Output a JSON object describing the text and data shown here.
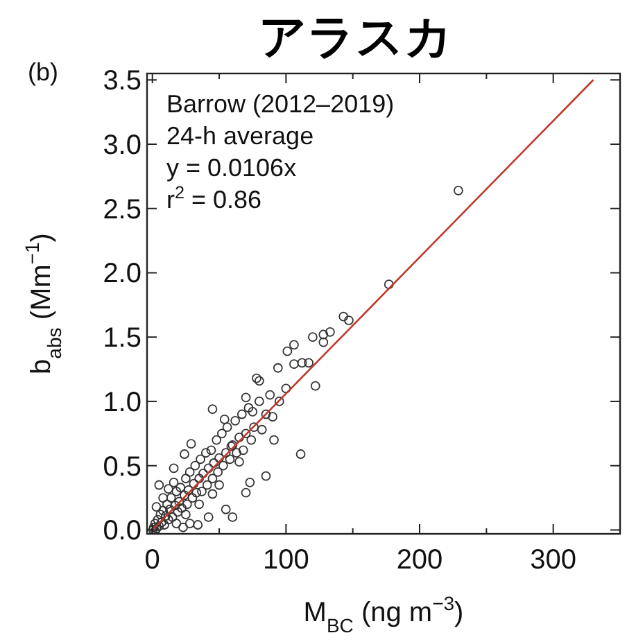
{
  "chart_data": {
    "type": "scatter",
    "title": "アラスカ",
    "xlabel": "M$_{BC}$ (ng m$^{−3}$)",
    "ylabel": "b$_{abs}$ (Mm$^{−1}$)",
    "annotations": [
      "(b)",
      "Barrow (2012–2019)",
      "24-h average",
      "y = 0.0106x",
      "r$^{2}$ = 0.86"
    ],
    "xlim": [
      -4,
      350
    ],
    "ylim": [
      -0.03,
      3.55
    ],
    "xticks": [
      0,
      {
        "value": 50,
        "label": null
      },
      100,
      {
        "value": 150,
        "label": null
      },
      200,
      {
        "value": 250,
        "label": null
      },
      300
    ],
    "yticks": [
      {
        "value": 0,
        "label": "0.0"
      },
      {
        "value": 0.5,
        "label": "0.5"
      },
      {
        "value": 1,
        "label": "1.0"
      },
      {
        "value": 1.5,
        "label": "1.5"
      },
      {
        "value": 2,
        "label": "2.0"
      },
      {
        "value": 2.5,
        "label": "2.5"
      },
      {
        "value": 3,
        "label": "3.0"
      },
      {
        "value": 3.5,
        "label": "3.5"
      }
    ],
    "grid": false,
    "series": [
      {
        "color": "#333333",
        "marker": "circle",
        "x": [
          229,
          177,
          143,
          147,
          120,
          128,
          133,
          128,
          106,
          106,
          112,
          117,
          122,
          91,
          111,
          78,
          60,
          85,
          70,
          55,
          16,
          5,
          34,
          23,
          45,
          54,
          94,
          101,
          70,
          80,
          75,
          29,
          24,
          16,
          59,
          65,
          73,
          42,
          28,
          1,
          2,
          3,
          4,
          5,
          6,
          7,
          8,
          9,
          10,
          11,
          12,
          13,
          14,
          15,
          17,
          18,
          19,
          20,
          21,
          22,
          24,
          25,
          26,
          27,
          28,
          30,
          31,
          32,
          33,
          35,
          36,
          37,
          38,
          40,
          41,
          42,
          44,
          45,
          46,
          48,
          49,
          50,
          52,
          53,
          55,
          56,
          58,
          60,
          62,
          63,
          65,
          67,
          68,
          70,
          72,
          74,
          76,
          80,
          82,
          85,
          88,
          90,
          95,
          100,
          18,
          25,
          35,
          45,
          50,
          8,
          12,
          3,
          0.5,
          2
        ],
        "values": [
          2.64,
          1.91,
          1.66,
          1.63,
          1.5,
          1.52,
          1.54,
          1.46,
          1.44,
          1.29,
          1.3,
          1.3,
          1.12,
          0.7,
          0.59,
          1.18,
          0.1,
          0.42,
          0.29,
          0.16,
          0.37,
          0.35,
          0.04,
          0.02,
          0.94,
          0.86,
          1.26,
          1.39,
          1.03,
          1.16,
          0.92,
          0.67,
          0.59,
          0.48,
          0.65,
          0.53,
          0.37,
          0.1,
          0.05,
          0.02,
          0.05,
          0.01,
          0.08,
          0.03,
          0.12,
          0.06,
          0.15,
          0.04,
          0.11,
          0.2,
          0.08,
          0.16,
          0.25,
          0.1,
          0.19,
          0.3,
          0.14,
          0.22,
          0.33,
          0.17,
          0.27,
          0.4,
          0.2,
          0.31,
          0.45,
          0.25,
          0.36,
          0.5,
          0.29,
          0.4,
          0.55,
          0.3,
          0.44,
          0.6,
          0.35,
          0.48,
          0.62,
          0.4,
          0.52,
          0.7,
          0.45,
          0.56,
          0.75,
          0.5,
          0.6,
          0.8,
          0.55,
          0.66,
          0.85,
          0.6,
          0.72,
          0.9,
          0.62,
          0.75,
          0.95,
          0.7,
          0.8,
          1.0,
          0.78,
          0.9,
          1.05,
          0.88,
          1.0,
          1.1,
          0.05,
          0.12,
          0.2,
          0.28,
          0.35,
          0.25,
          0.32,
          0.18,
          0.0,
          -0.01
        ]
      },
      {
        "type": "line",
        "color": "#c0392b",
        "x": [
          0,
          330
        ],
        "values": [
          0,
          3.5
        ]
      }
    ]
  }
}
